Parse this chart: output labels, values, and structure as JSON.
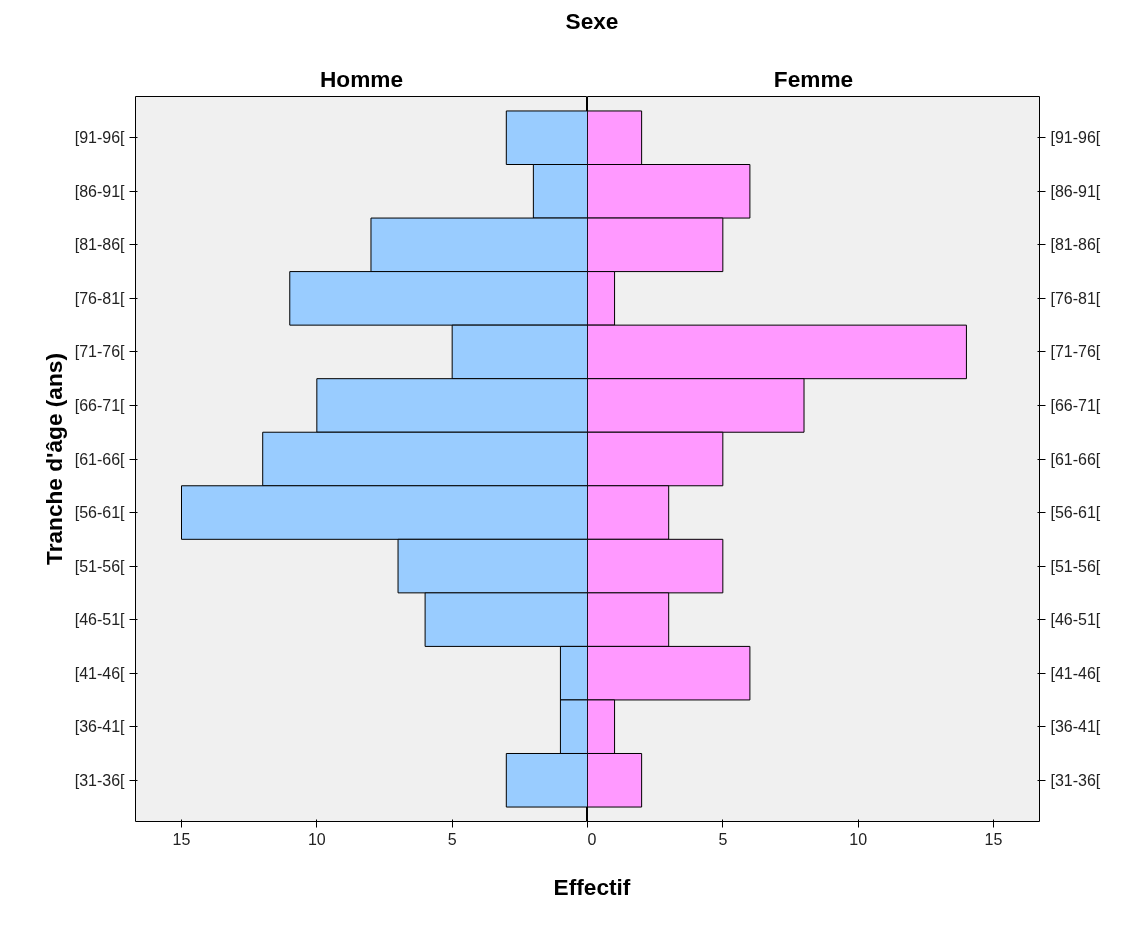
{
  "chart_data": [
    {
      "type": "bar",
      "orientation": "horizontal",
      "title": "Homme",
      "ylabel": "Tranche d'âge (ans)",
      "xlabel": "Effectif",
      "annotations": [
        "Sexe"
      ],
      "categories": [
        "[91-96[",
        "[86-91[",
        "[81-86[",
        "[76-81[",
        "[71-76[",
        "[66-71[",
        "[61-66[",
        "[56-61[",
        "[51-56[",
        "[46-51[",
        "[41-46[",
        "[36-41[",
        "[31-36["
      ],
      "series": [
        {
          "color": "#99ccff",
          "values": [
            3,
            2,
            8,
            11,
            5,
            10,
            12,
            15,
            7,
            6,
            1,
            1,
            3
          ]
        }
      ],
      "xlim": [
        16.7,
        0
      ],
      "xticks": [
        15,
        10,
        5
      ],
      "grid": false
    },
    {
      "type": "bar",
      "orientation": "horizontal",
      "title": "Femme",
      "categories": [
        "[91-96[",
        "[86-91[",
        "[81-86[",
        "[76-81[",
        "[71-76[",
        "[66-71[",
        "[61-66[",
        "[56-61[",
        "[51-56[",
        "[46-51[",
        "[41-46[",
        "[36-41[",
        "[31-36["
      ],
      "series": [
        {
          "color": "#ff99ff",
          "values": [
            2,
            6,
            5,
            1,
            14,
            8,
            5,
            3,
            5,
            3,
            6,
            1,
            2
          ]
        }
      ],
      "xlim": [
        0,
        16.7
      ],
      "xticks": [
        0,
        5,
        10,
        15
      ],
      "grid": false
    }
  ]
}
